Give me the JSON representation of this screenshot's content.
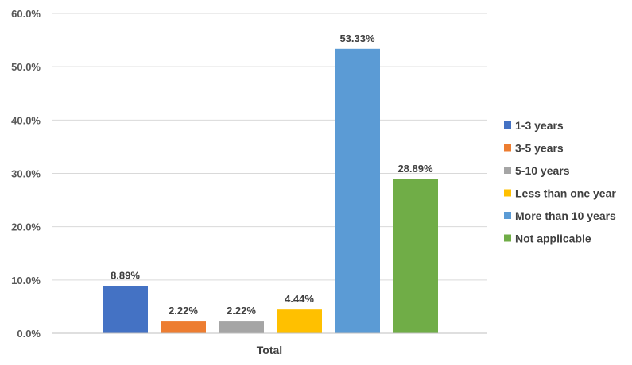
{
  "chart_data": {
    "type": "bar",
    "categories": [
      "Total"
    ],
    "series": [
      {
        "name": "1-3 years",
        "values": [
          8.89
        ],
        "label": "8.89%",
        "color": "#4472C4"
      },
      {
        "name": "3-5 years",
        "values": [
          2.22
        ],
        "label": "2.22%",
        "color": "#ED7D31"
      },
      {
        "name": "5-10 years",
        "values": [
          2.22
        ],
        "label": "2.22%",
        "color": "#A5A5A5"
      },
      {
        "name": "Less than one year",
        "values": [
          4.44
        ],
        "label": "4.44%",
        "color": "#FFC000"
      },
      {
        "name": "More than 10 years",
        "values": [
          53.33
        ],
        "label": "53.33%",
        "color": "#5B9BD5"
      },
      {
        "name": "Not applicable",
        "values": [
          28.89
        ],
        "label": "28.89%",
        "color": "#70AD47"
      }
    ],
    "yticks": [
      "0.0%",
      "10.0%",
      "20.0%",
      "30.0%",
      "40.0%",
      "50.0%",
      "60.0%"
    ],
    "ylim": [
      0,
      60
    ],
    "grid": true,
    "legend_position": "right",
    "title": "",
    "xlabel": "",
    "ylabel": ""
  }
}
